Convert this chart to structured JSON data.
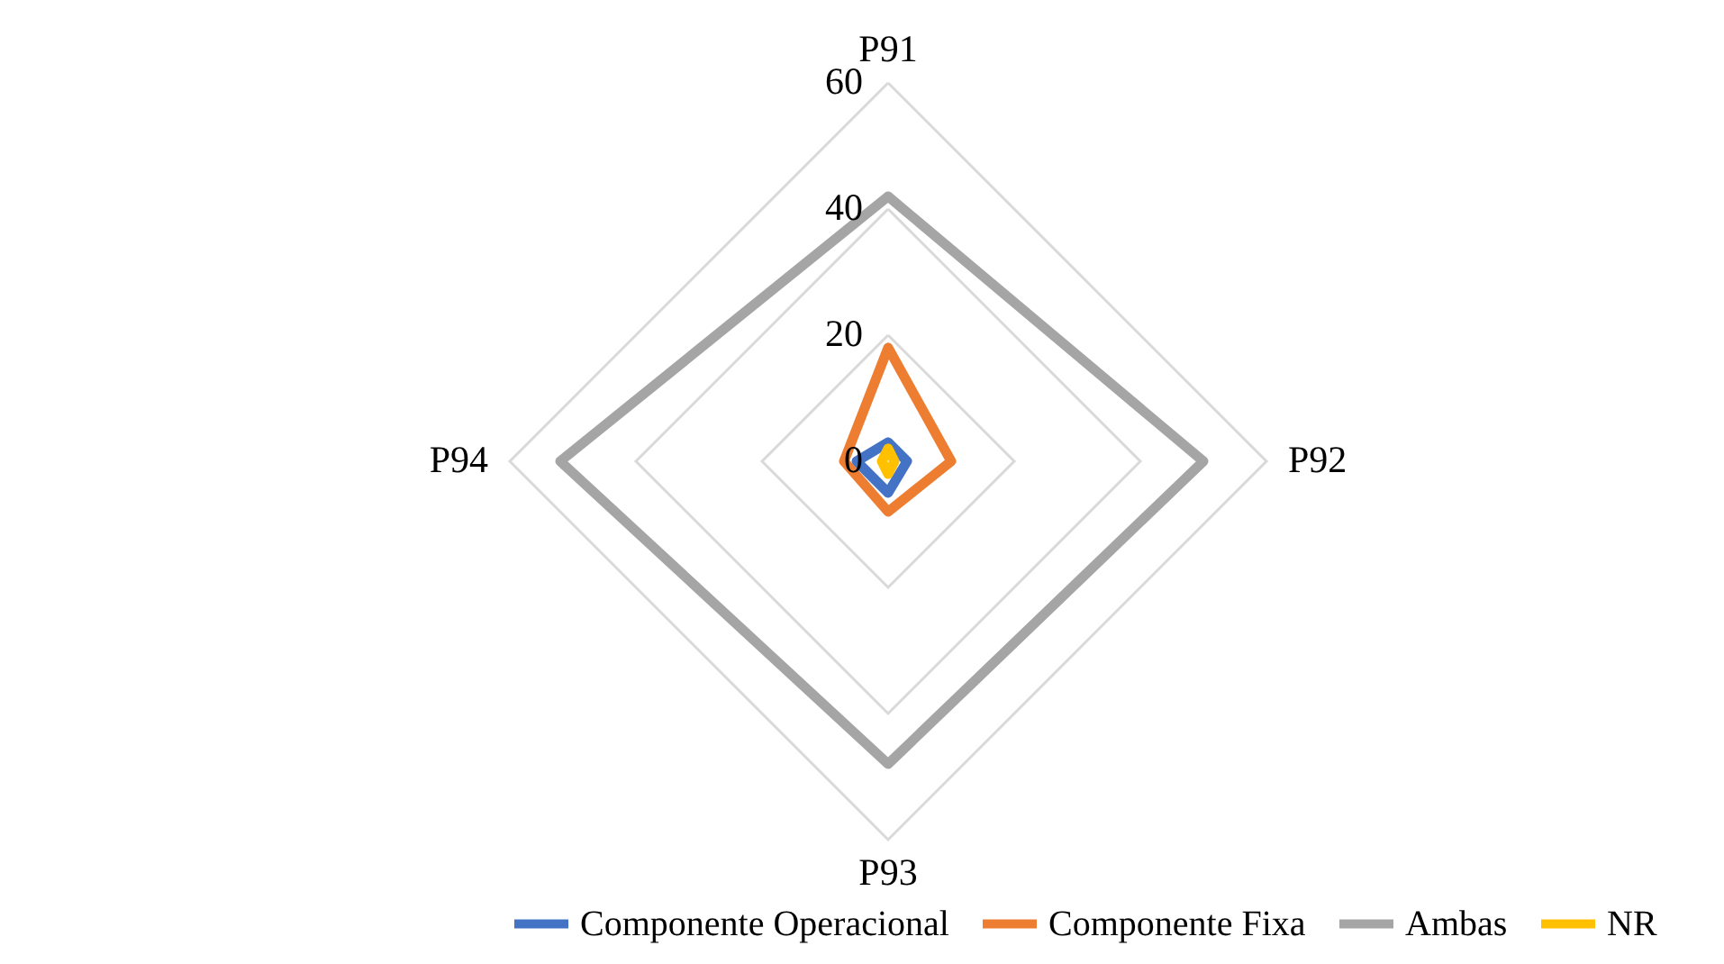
{
  "chart_data": {
    "type": "radar",
    "categories": [
      "P91",
      "P92",
      "P93",
      "P94"
    ],
    "ylim": [
      0,
      60
    ],
    "yticks": [
      0,
      20,
      40,
      60
    ],
    "grid": true,
    "legend": "bottom",
    "series": [
      {
        "name": "Componente Operacional",
        "color": "#4472c4",
        "values": [
          3,
          3,
          5,
          5
        ]
      },
      {
        "name": "Componente Fixa",
        "color": "#ed7d31",
        "values": [
          18,
          10,
          8,
          7
        ]
      },
      {
        "name": "Ambas",
        "color": "#a5a5a5",
        "values": [
          42,
          50,
          48,
          52
        ]
      },
      {
        "name": "NR",
        "color": "#ffc000",
        "values": [
          2,
          1,
          2,
          1
        ]
      }
    ]
  }
}
